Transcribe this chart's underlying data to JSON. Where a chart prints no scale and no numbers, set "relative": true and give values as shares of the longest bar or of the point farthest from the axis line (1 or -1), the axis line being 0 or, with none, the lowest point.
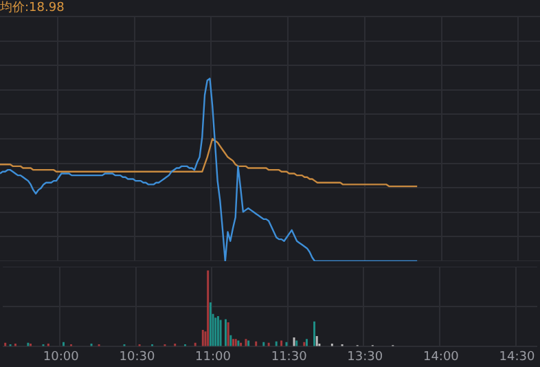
{
  "chart_data": [
    {
      "type": "line",
      "relative": true,
      "grid": true,
      "annotations": [
        "均价:18.98"
      ],
      "categories": [
        null,
        null,
        null,
        null,
        null,
        null,
        null,
        null,
        null,
        null,
        null,
        null,
        null,
        null,
        null,
        null,
        null,
        null,
        null,
        null,
        null,
        null,
        null,
        null,
        null,
        null,
        null,
        null,
        null,
        null,
        null,
        null,
        null,
        null,
        null,
        null,
        null,
        null,
        null,
        null,
        null,
        null,
        null,
        null,
        null,
        null,
        null,
        null,
        null,
        null,
        null,
        null,
        null,
        null,
        null,
        null,
        null,
        null,
        null,
        null,
        null,
        null,
        null,
        null,
        null,
        null,
        null,
        null,
        null,
        null,
        null,
        null,
        null,
        null,
        null,
        null,
        null,
        null,
        null,
        null,
        null,
        null,
        null,
        null,
        null,
        null,
        null,
        null,
        null,
        null,
        null,
        null,
        null,
        null,
        null,
        null,
        null,
        null,
        null,
        null,
        null,
        null,
        null,
        null,
        null,
        null,
        null,
        null,
        null,
        null,
        null,
        null,
        null,
        null,
        null,
        null,
        null,
        null,
        null,
        null,
        null,
        null,
        null,
        null,
        null,
        null,
        null,
        null,
        null,
        null,
        null,
        null,
        null,
        null,
        null,
        null,
        null,
        null,
        null,
        null,
        null,
        null,
        null,
        null,
        null,
        null,
        null,
        null,
        null,
        null,
        null,
        null,
        null,
        null,
        null,
        null,
        null,
        null,
        null,
        null,
        null,
        null,
        null,
        null,
        null,
        null,
        null,
        null,
        null,
        null,
        null,
        null,
        null,
        null,
        null,
        null,
        null,
        null,
        null,
        null,
        null,
        null,
        null,
        null,
        null,
        null,
        null,
        null,
        null,
        null,
        null,
        null,
        null,
        null,
        null,
        null,
        null,
        null,
        null,
        null,
        null,
        null,
        null,
        null,
        null,
        null,
        null,
        null,
        null,
        null,
        null,
        null
      ],
      "series": [
        {
          "type": "line",
          "color": "#3e8fd8",
          "values": [
            0.48,
            0.49,
            0.49,
            0.5,
            0.5,
            0.49,
            0.48,
            0.47,
            0.47,
            0.46,
            0.45,
            0.44,
            0.42,
            0.39,
            0.37,
            0.39,
            0.4,
            0.42,
            0.43,
            0.43,
            0.43,
            0.44,
            0.44,
            0.46,
            0.48,
            0.48,
            0.48,
            0.48,
            0.47,
            0.47,
            0.47,
            0.47,
            0.47,
            0.47,
            0.47,
            0.47,
            0.47,
            0.47,
            0.47,
            0.47,
            0.47,
            0.48,
            0.48,
            0.48,
            0.48,
            0.47,
            0.47,
            0.47,
            0.46,
            0.46,
            0.45,
            0.45,
            0.45,
            0.44,
            0.44,
            0.44,
            0.43,
            0.43,
            0.42,
            0.42,
            0.42,
            0.43,
            0.43,
            0.44,
            0.45,
            0.46,
            0.47,
            0.49,
            0.5,
            0.51,
            0.51,
            0.52,
            0.52,
            0.52,
            0.51,
            0.51,
            0.5,
            0.54,
            0.57,
            0.68,
            0.91,
            0.99,
            1,
            0.85,
            0.65,
            0.44,
            0.33,
            0.17,
            0,
            0.16,
            0.11,
            0.18,
            0.24,
            0.52,
            0.4,
            0.27,
            0.28,
            0.29,
            0.28,
            0.27,
            0.26,
            0.25,
            0.24,
            0.23,
            0.23,
            0.22,
            0.19,
            0.16,
            0.13,
            0.12,
            0.12,
            0.11,
            0.13,
            0.15,
            0.17,
            0.14,
            0.11,
            0.1,
            0.09,
            0.08,
            0.07,
            0.05,
            0.02,
            0,
            0,
            0,
            0,
            0,
            0,
            0,
            0,
            0,
            0,
            0,
            0,
            0,
            0,
            0,
            0,
            0,
            0,
            0,
            0,
            0,
            0,
            0,
            0,
            0,
            0,
            0,
            0,
            0,
            0,
            0,
            0,
            0,
            0,
            0,
            0,
            0,
            0,
            0,
            0,
            0,
            null,
            null,
            null,
            null,
            null,
            null,
            null,
            null,
            null,
            null,
            null,
            null,
            null,
            null,
            null,
            null,
            null,
            null,
            null,
            null,
            null,
            null,
            null,
            null,
            null,
            null,
            null,
            null,
            null,
            null,
            null,
            null,
            null,
            null,
            null,
            null,
            null,
            null,
            null,
            null,
            null,
            null,
            null,
            null,
            null,
            null,
            null,
            null
          ]
        },
        {
          "type": "line",
          "color": "#c98a3f",
          "values": [
            0.53,
            0.53,
            0.53,
            0.53,
            0.53,
            0.52,
            0.52,
            0.52,
            0.52,
            0.51,
            0.51,
            0.51,
            0.51,
            0.5,
            0.5,
            0.5,
            0.5,
            0.5,
            0.5,
            0.5,
            0.5,
            0.5,
            0.49,
            0.49,
            0.49,
            0.49,
            0.49,
            0.49,
            0.49,
            0.49,
            0.49,
            0.49,
            0.49,
            0.49,
            0.49,
            0.49,
            0.49,
            0.49,
            0.49,
            0.49,
            0.49,
            0.49,
            0.49,
            0.49,
            0.49,
            0.49,
            0.49,
            0.49,
            0.49,
            0.49,
            0.49,
            0.49,
            0.49,
            0.49,
            0.49,
            0.49,
            0.49,
            0.49,
            0.49,
            0.49,
            0.49,
            0.49,
            0.49,
            0.49,
            0.49,
            0.49,
            0.49,
            0.49,
            0.49,
            0.49,
            0.49,
            0.49,
            0.49,
            0.49,
            0.49,
            0.49,
            0.49,
            0.49,
            0.49,
            0.49,
            0.53,
            0.57,
            0.62,
            0.67,
            0.66,
            0.65,
            0.63,
            0.61,
            0.59,
            0.57,
            0.56,
            0.55,
            0.53,
            0.52,
            0.52,
            0.52,
            0.52,
            0.51,
            0.51,
            0.51,
            0.51,
            0.51,
            0.51,
            0.51,
            0.51,
            0.5,
            0.5,
            0.5,
            0.5,
            0.5,
            0.49,
            0.49,
            0.49,
            0.48,
            0.48,
            0.48,
            0.47,
            0.47,
            0.47,
            0.46,
            0.46,
            0.45,
            0.45,
            0.44,
            0.43,
            0.43,
            0.43,
            0.43,
            0.43,
            0.43,
            0.43,
            0.43,
            0.43,
            0.43,
            0.42,
            0.42,
            0.42,
            0.42,
            0.42,
            0.42,
            0.42,
            0.42,
            0.42,
            0.42,
            0.42,
            0.42,
            0.42,
            0.42,
            0.42,
            0.42,
            0.42,
            0.42,
            0.41,
            0.41,
            0.41,
            0.41,
            0.41,
            0.41,
            0.41,
            0.41,
            0.41,
            0.41,
            0.41,
            0.41,
            null,
            null,
            null,
            null,
            null,
            null,
            null,
            null,
            null,
            null,
            null,
            null,
            null,
            null,
            null,
            null,
            null,
            null,
            null,
            null,
            null,
            null,
            null,
            null,
            null,
            null,
            null,
            null,
            null,
            null,
            null,
            null,
            null,
            null,
            null,
            null,
            null,
            null,
            null,
            null,
            null,
            null,
            null,
            null,
            null,
            null,
            null,
            null
          ]
        }
      ]
    },
    {
      "type": "bar",
      "relative": true,
      "grid": true,
      "categories": [
        null,
        null,
        null,
        null,
        null,
        null,
        null,
        null,
        null,
        null,
        null,
        null,
        null,
        null,
        null,
        null,
        null,
        null,
        null,
        null,
        null,
        null,
        null,
        "10:00",
        null,
        null,
        null,
        null,
        null,
        null,
        null,
        null,
        null,
        null,
        null,
        null,
        null,
        null,
        null,
        null,
        null,
        null,
        null,
        null,
        null,
        null,
        null,
        null,
        null,
        null,
        null,
        null,
        null,
        "10:30",
        null,
        null,
        null,
        null,
        null,
        null,
        null,
        null,
        null,
        null,
        null,
        null,
        null,
        null,
        null,
        null,
        null,
        null,
        null,
        null,
        null,
        null,
        null,
        null,
        null,
        null,
        null,
        null,
        null,
        "11:00",
        null,
        null,
        null,
        null,
        null,
        null,
        null,
        null,
        null,
        null,
        null,
        null,
        null,
        null,
        null,
        null,
        null,
        null,
        null,
        null,
        null,
        null,
        null,
        null,
        null,
        null,
        null,
        null,
        null,
        "11:30",
        null,
        null,
        null,
        null,
        null,
        null,
        null,
        null,
        null,
        null,
        null,
        null,
        null,
        null,
        null,
        null,
        null,
        null,
        null,
        null,
        null,
        null,
        null,
        null,
        null,
        null,
        null,
        null,
        null,
        "13:30",
        null,
        null,
        null,
        null,
        null,
        null,
        null,
        null,
        null,
        null,
        null,
        null,
        null,
        null,
        null,
        null,
        null,
        null,
        null,
        null,
        null,
        null,
        null,
        null,
        null,
        null,
        null,
        null,
        null,
        "14:00",
        null,
        null,
        null,
        null,
        null,
        null,
        null,
        null,
        null,
        null,
        null,
        null,
        null,
        null,
        null,
        null,
        null,
        null,
        null,
        null,
        null,
        null,
        null,
        null,
        null,
        null,
        null,
        null,
        null,
        "14:30",
        null,
        null,
        null,
        null,
        null,
        null,
        null,
        null
      ],
      "series": [
        {
          "color": "#a8393c",
          "values": [
            null,
            0.05,
            null,
            null,
            null,
            0.04,
            null,
            null,
            null,
            null,
            null,
            0.04,
            null,
            null,
            null,
            null,
            null,
            null,
            0.04,
            null,
            null,
            null,
            null,
            null,
            null,
            null,
            null,
            0.03,
            null,
            null,
            null,
            null,
            null,
            null,
            null,
            null,
            null,
            null,
            0.03,
            null,
            null,
            null,
            null,
            null,
            null,
            null,
            null,
            null,
            null,
            null,
            null,
            null,
            null,
            null,
            0.03,
            null,
            null,
            null,
            null,
            null,
            null,
            null,
            null,
            null,
            0.03,
            null,
            null,
            null,
            0.04,
            null,
            null,
            null,
            null,
            null,
            null,
            null,
            0.05,
            null,
            null,
            0.22,
            0.2,
            1,
            null,
            null,
            null,
            null,
            null,
            null,
            null,
            0.32,
            null,
            0.1,
            0.1,
            null,
            0.05,
            null,
            0.1,
            null,
            null,
            null,
            0.07,
            null,
            null,
            null,
            null,
            0.05,
            null,
            null,
            null,
            null,
            0.08,
            null,
            null,
            null,
            null,
            null,
            null,
            null,
            null,
            0.06,
            null,
            null,
            null,
            null,
            null,
            null,
            null,
            null,
            null,
            null,
            null,
            null,
            null,
            null,
            null,
            null,
            null,
            null,
            null,
            null,
            null,
            null,
            null,
            null,
            null,
            null,
            null,
            null,
            null,
            null,
            null,
            null,
            null,
            null,
            null,
            null,
            null,
            null,
            null,
            null,
            null,
            null,
            null,
            null,
            null,
            null,
            null,
            null,
            null,
            null,
            null,
            null,
            null,
            null,
            null,
            null,
            null,
            null,
            null,
            null,
            null,
            null,
            null,
            null,
            null,
            null,
            null,
            null,
            null,
            null,
            null,
            null,
            null,
            null,
            null,
            null,
            null,
            null,
            null,
            null,
            null,
            null,
            null,
            null,
            null,
            null,
            null,
            null,
            null,
            null,
            null,
            null
          ]
        },
        {
          "color": "#1e8f87",
          "values": [
            null,
            null,
            null,
            0.03,
            null,
            null,
            null,
            null,
            null,
            null,
            0.05,
            null,
            null,
            null,
            null,
            null,
            0.03,
            null,
            null,
            null,
            null,
            null,
            null,
            null,
            0.06,
            null,
            null,
            null,
            null,
            null,
            null,
            null,
            null,
            null,
            null,
            0.04,
            null,
            null,
            null,
            null,
            null,
            null,
            null,
            null,
            null,
            null,
            null,
            null,
            0.03,
            null,
            null,
            null,
            null,
            null,
            null,
            null,
            null,
            null,
            null,
            0.03,
            null,
            null,
            null,
            null,
            null,
            null,
            null,
            null,
            null,
            null,
            null,
            null,
            0.03,
            null,
            null,
            null,
            null,
            null,
            null,
            null,
            null,
            null,
            0.58,
            0.43,
            0.38,
            0.4,
            0.35,
            null,
            0.36,
            null,
            0.15,
            null,
            null,
            0.08,
            null,
            null,
            null,
            0.08,
            null,
            null,
            null,
            null,
            null,
            0.06,
            null,
            null,
            null,
            null,
            0.07,
            null,
            null,
            null,
            0.06,
            null,
            null,
            null,
            0.08,
            null,
            null,
            null,
            0.1,
            null,
            null,
            0.33,
            null,
            null,
            null,
            null,
            null,
            null,
            null,
            null,
            null,
            null,
            null,
            null,
            null,
            null,
            null,
            null,
            null,
            null,
            null,
            null,
            null,
            null,
            null,
            null,
            null,
            null,
            null,
            null,
            null,
            null,
            null,
            null,
            null,
            null,
            null,
            null,
            null,
            null,
            null,
            null,
            null,
            null,
            null,
            null,
            null,
            null,
            null,
            null,
            null,
            null,
            null,
            null,
            null,
            null,
            null,
            null,
            null,
            null,
            null,
            null,
            null,
            null,
            null,
            null,
            null,
            null,
            null,
            null,
            null,
            null,
            null,
            null,
            null,
            null,
            null,
            null,
            null,
            null,
            null,
            null,
            null,
            null,
            null,
            null,
            null,
            null,
            null,
            null
          ]
        },
        {
          "color": "#bdbdbd",
          "values": [
            null,
            null,
            null,
            null,
            null,
            null,
            null,
            null,
            null,
            null,
            null,
            null,
            null,
            null,
            null,
            null,
            null,
            null,
            null,
            null,
            null,
            null,
            null,
            null,
            null,
            null,
            null,
            null,
            null,
            null,
            null,
            null,
            null,
            null,
            null,
            null,
            null,
            null,
            null,
            null,
            null,
            null,
            null,
            null,
            null,
            null,
            null,
            null,
            null,
            null,
            null,
            null,
            null,
            null,
            null,
            null,
            null,
            null,
            null,
            null,
            null,
            null,
            null,
            null,
            null,
            null,
            null,
            null,
            null,
            null,
            null,
            null,
            null,
            null,
            null,
            null,
            null,
            null,
            null,
            null,
            null,
            null,
            null,
            null,
            null,
            null,
            null,
            null,
            null,
            null,
            null,
            null,
            null,
            null,
            null,
            null,
            null,
            null,
            null,
            null,
            null,
            null,
            null,
            null,
            null,
            null,
            null,
            null,
            null,
            null,
            null,
            null,
            null,
            null,
            null,
            0.12,
            null,
            null,
            null,
            null,
            null,
            null,
            null,
            null,
            0.14,
            0.04,
            null,
            null,
            null,
            null,
            0.04,
            null,
            null,
            null,
            0.03,
            null,
            null,
            null,
            null,
            null,
            0.02,
            null,
            null,
            null,
            null,
            null,
            0.02,
            null,
            null,
            null,
            null,
            null,
            null,
            null,
            0.02,
            null,
            null,
            null,
            null,
            null,
            null,
            null,
            null,
            null,
            null,
            null,
            null,
            null,
            null,
            null,
            null,
            null,
            null,
            null,
            null,
            null,
            null,
            null,
            null,
            null,
            null,
            null,
            null,
            null,
            null,
            null,
            null,
            null,
            null,
            null,
            null,
            null,
            null,
            null,
            null,
            null,
            null,
            null,
            null,
            null,
            null,
            null,
            null,
            null,
            null,
            null,
            null,
            null,
            null,
            null,
            null,
            null
          ]
        }
      ]
    }
  ]
}
